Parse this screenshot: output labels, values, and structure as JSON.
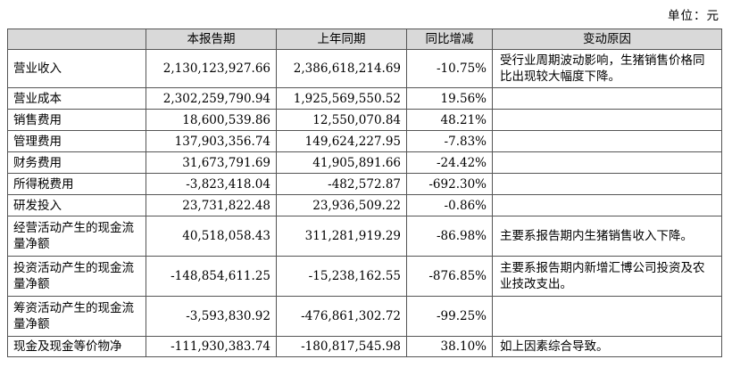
{
  "unit": "单位：元",
  "headers": [
    "",
    "本报告期",
    "上年同期",
    "同比增减",
    "变动原因"
  ],
  "rows": [
    {
      "label": "营业收入",
      "current": "2,130,123,927.66",
      "previous": "2,386,618,214.69",
      "change": "-10.75%",
      "reason": "受行业周期波动影响，生猪销售价格同比出现较大幅度下降。"
    },
    {
      "label": "营业成本",
      "current": "2,302,259,790.94",
      "previous": "1,925,569,550.52",
      "change": "19.56%",
      "reason": ""
    },
    {
      "label": "销售费用",
      "current": "18,600,539.86",
      "previous": "12,550,070.84",
      "change": "48.21%",
      "reason": ""
    },
    {
      "label": "管理费用",
      "current": "137,903,356.74",
      "previous": "149,624,227.95",
      "change": "-7.83%",
      "reason": ""
    },
    {
      "label": "财务费用",
      "current": "31,673,791.69",
      "previous": "41,905,891.66",
      "change": "-24.42%",
      "reason": ""
    },
    {
      "label": "所得税费用",
      "current": "-3,823,418.04",
      "previous": "-482,572.87",
      "change": "-692.30%",
      "reason": ""
    },
    {
      "label": "研发投入",
      "current": "23,731,822.48",
      "previous": "23,936,509.22",
      "change": "-0.86%",
      "reason": ""
    },
    {
      "label": "经营活动产生的现金流量净额",
      "current": "40,518,058.43",
      "previous": "311,281,919.29",
      "change": "-86.98%",
      "reason": "主要系报告期内生猪销售收入下降。"
    },
    {
      "label": "投资活动产生的现金流量净额",
      "current": "-148,854,611.25",
      "previous": "-15,238,162.55",
      "change": "-876.85%",
      "reason": "主要系报告期内新增汇博公司投资及农业技改支出。"
    },
    {
      "label": "筹资活动产生的现金流量净额",
      "current": "-3,593,830.92",
      "previous": "-476,861,302.72",
      "change": "-99.25%",
      "reason": ""
    },
    {
      "label": "现金及现金等价物净",
      "current": "-111,930,383.74",
      "previous": "-180,817,545.98",
      "change": "38.10%",
      "reason": "如上因素综合导致。"
    }
  ]
}
